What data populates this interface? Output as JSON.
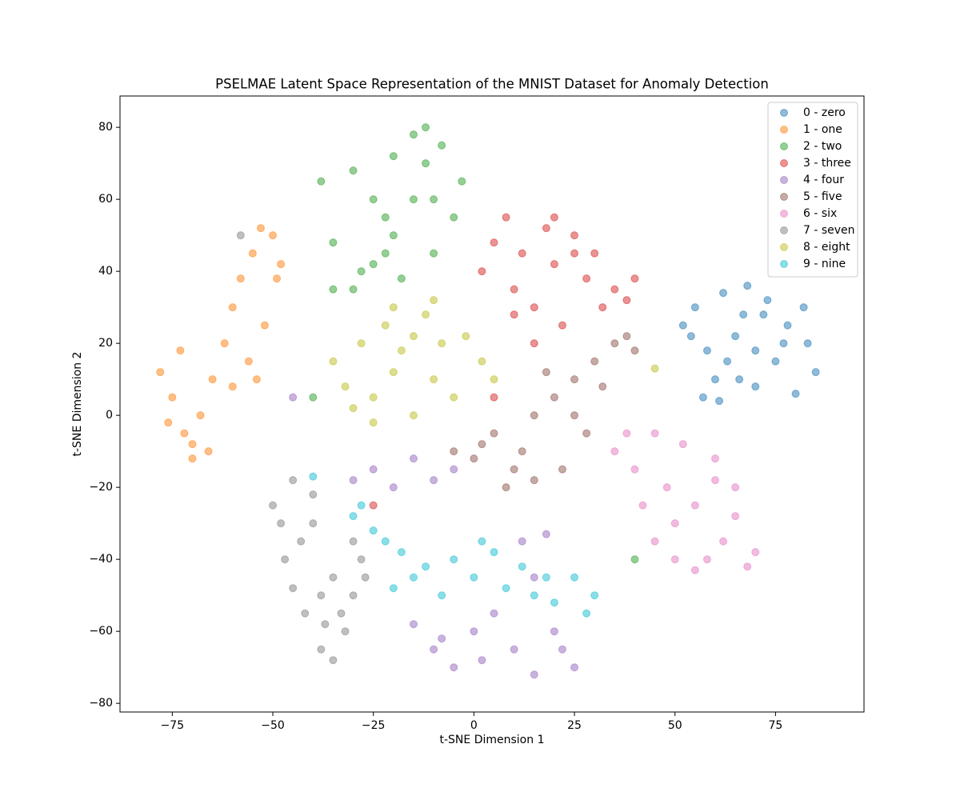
{
  "chart_data": {
    "type": "scatter",
    "title": "PSELMAE Latent Space Representation of the MNIST Dataset for Anomaly Detection",
    "x_label": "t-SNE Dimension 1",
    "y_label": "t-SNE Dimension 2",
    "xlim": [
      -88,
      97
    ],
    "ylim": [
      -82.4,
      88.7
    ],
    "xticks": [
      {
        "value": -75,
        "label": "−75"
      },
      {
        "value": -50,
        "label": "−50"
      },
      {
        "value": -25,
        "label": "−25"
      },
      0,
      25,
      50,
      75
    ],
    "yticks": [
      {
        "value": -80,
        "label": "−80"
      },
      {
        "value": -60,
        "label": "−60"
      },
      {
        "value": -40,
        "label": "−40"
      },
      {
        "value": -20,
        "label": "−20"
      },
      0,
      20,
      40,
      60,
      80
    ],
    "grid": false,
    "legend": "upper right",
    "opacity": 0.5,
    "series": [
      {
        "name": "0 - zero",
        "color": "#1f77b4",
        "x": [
          52,
          55,
          58,
          60,
          62,
          65,
          68,
          70,
          72,
          75,
          78,
          80,
          83,
          85,
          57,
          63,
          67,
          73,
          77,
          61,
          54,
          70,
          66,
          82
        ],
        "values": [
          25,
          30,
          18,
          10,
          34,
          22,
          36,
          8,
          28,
          15,
          25,
          6,
          20,
          12,
          5,
          15,
          28,
          32,
          20,
          4,
          22,
          18,
          10,
          30
        ]
      },
      {
        "name": "1 - one",
        "color": "#ff7f0e",
        "x": [
          -78,
          -75,
          -72,
          -70,
          -73,
          -68,
          -65,
          -62,
          -60,
          -58,
          -55,
          -53,
          -50,
          -48,
          -52,
          -56,
          -60,
          -70,
          -76,
          -66,
          -49,
          -54
        ],
        "values": [
          12,
          5,
          -5,
          -12,
          18,
          0,
          10,
          20,
          30,
          38,
          45,
          52,
          50,
          42,
          25,
          15,
          8,
          -8,
          -2,
          -10,
          38,
          10
        ]
      },
      {
        "name": "2 - two",
        "color": "#2ca02c",
        "x": [
          -38,
          -35,
          -30,
          -28,
          -25,
          -22,
          -20,
          -18,
          -15,
          -12,
          -10,
          -8,
          -5,
          -3,
          -30,
          -25,
          -20,
          -15,
          -10,
          -22,
          -35,
          -12,
          40,
          -40
        ],
        "values": [
          65,
          48,
          68,
          40,
          60,
          45,
          72,
          38,
          78,
          70,
          60,
          75,
          55,
          65,
          35,
          42,
          50,
          60,
          45,
          55,
          35,
          80,
          -40,
          5
        ]
      },
      {
        "name": "3 - three",
        "color": "#d62728",
        "x": [
          2,
          5,
          8,
          10,
          12,
          15,
          18,
          20,
          22,
          25,
          28,
          30,
          32,
          35,
          38,
          15,
          10,
          20,
          25,
          40,
          5,
          -25
        ],
        "values": [
          40,
          48,
          55,
          35,
          45,
          30,
          52,
          42,
          25,
          50,
          38,
          45,
          30,
          35,
          32,
          20,
          28,
          55,
          45,
          38,
          5,
          -25
        ]
      },
      {
        "name": "4 - four",
        "color": "#9467bd",
        "x": [
          -30,
          -25,
          -20,
          -15,
          -10,
          -5,
          -15,
          -10,
          -5,
          0,
          5,
          10,
          15,
          20,
          25,
          12,
          18,
          2,
          -8,
          15,
          -45,
          22
        ],
        "values": [
          -18,
          -15,
          -20,
          -12,
          -18,
          -15,
          -58,
          -65,
          -70,
          -60,
          -55,
          -65,
          -72,
          -60,
          -70,
          -35,
          -33,
          -68,
          -62,
          -45,
          5,
          -65
        ]
      },
      {
        "name": "5 - five",
        "color": "#8c564b",
        "x": [
          -5,
          0,
          5,
          10,
          15,
          20,
          25,
          28,
          30,
          35,
          38,
          40,
          12,
          18,
          22,
          8,
          2,
          32,
          25,
          15
        ],
        "values": [
          -10,
          -12,
          -5,
          -15,
          0,
          5,
          10,
          -5,
          15,
          20,
          22,
          18,
          -10,
          12,
          -15,
          -20,
          -8,
          8,
          0,
          -18
        ]
      },
      {
        "name": "6 - six",
        "color": "#e377c2",
        "x": [
          35,
          40,
          45,
          48,
          50,
          52,
          55,
          58,
          60,
          62,
          65,
          68,
          70,
          42,
          55,
          45,
          60,
          50,
          65,
          38
        ],
        "values": [
          -10,
          -15,
          -5,
          -20,
          -30,
          -8,
          -25,
          -40,
          -18,
          -35,
          -28,
          -42,
          -38,
          -25,
          -43,
          -35,
          -12,
          -40,
          -20,
          -5
        ]
      },
      {
        "name": "7 - seven",
        "color": "#7f7f7f",
        "x": [
          -50,
          -47,
          -45,
          -42,
          -40,
          -38,
          -35,
          -32,
          -30,
          -28,
          -45,
          -40,
          -35,
          -30,
          -43,
          -38,
          -33,
          -48,
          -37,
          -27,
          -58
        ],
        "values": [
          -25,
          -40,
          -18,
          -55,
          -30,
          -65,
          -45,
          -60,
          -50,
          -40,
          -48,
          -22,
          -68,
          -35,
          -35,
          -50,
          -55,
          -30,
          -58,
          -45,
          50
        ]
      },
      {
        "name": "8 - eight",
        "color": "#bcbd22",
        "x": [
          -35,
          -32,
          -28,
          -25,
          -22,
          -20,
          -18,
          -15,
          -12,
          -10,
          -8,
          -5,
          -2,
          2,
          5,
          -30,
          -20,
          -10,
          -25,
          -15,
          45
        ],
        "values": [
          15,
          8,
          20,
          5,
          25,
          12,
          18,
          0,
          28,
          10,
          20,
          5,
          22,
          15,
          10,
          2,
          30,
          32,
          -2,
          22,
          13
        ]
      },
      {
        "name": "9 - nine",
        "color": "#17becf",
        "x": [
          -30,
          -28,
          -25,
          -22,
          -18,
          -15,
          -12,
          -8,
          -5,
          0,
          5,
          8,
          12,
          15,
          18,
          20,
          25,
          28,
          30,
          -40,
          -20,
          2
        ],
        "values": [
          -28,
          -25,
          -32,
          -35,
          -38,
          -45,
          -42,
          -50,
          -40,
          -45,
          -38,
          -48,
          -42,
          -50,
          -45,
          -52,
          -45,
          -55,
          -50,
          -17,
          -48,
          -35
        ]
      }
    ]
  }
}
